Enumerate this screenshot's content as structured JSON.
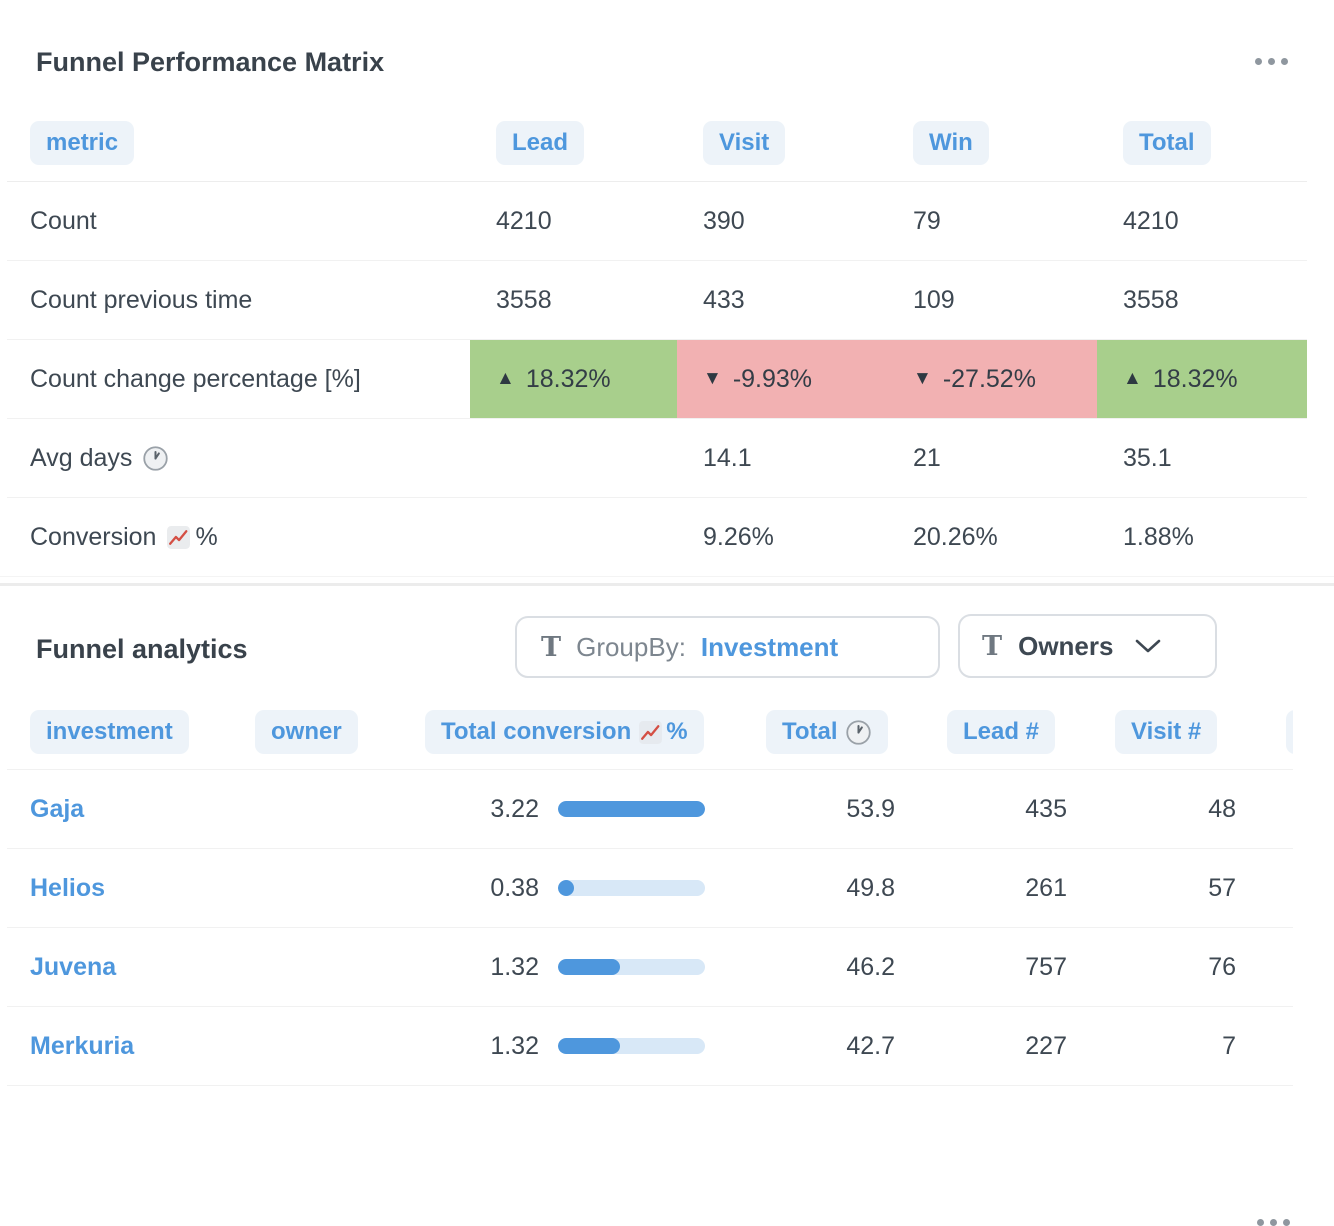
{
  "colors": {
    "accent_blue": "#4e97dd",
    "badge_background": "#edf3f9",
    "positive_cell": "#a8cf8c",
    "negative_cell": "#f2b1b2",
    "bar_fill": "#4e97dd",
    "bar_track": "#d8e8f7",
    "text_dark": "#3e4852",
    "text_gray": "#7d868f"
  },
  "icons": {
    "matrix_menu": "ellipsis-icon",
    "analytics_menu": "ellipsis-icon",
    "avg_days": "clock-icon",
    "conversion": "chart-up-icon",
    "total_header": "clock-icon",
    "total_conversion_header": "chart-up-icon",
    "groupby_field": "text-format-icon",
    "owners_field": "text-format-icon",
    "owners_chevron": "chevron-down-icon"
  },
  "matrix": {
    "title": "Funnel Performance Matrix",
    "columns": {
      "metric": "metric",
      "lead": "Lead",
      "visit": "Visit",
      "win": "Win",
      "total": "Total"
    },
    "rows": {
      "count": {
        "label": "Count",
        "values": [
          "4210",
          "390",
          "79",
          "4210"
        ]
      },
      "count_prev": {
        "label": "Count previous time",
        "values": [
          "3558",
          "433",
          "109",
          "3558"
        ]
      },
      "count_change": {
        "label": "Count change percentage [%]",
        "cells": [
          {
            "arrow": "▲",
            "value": "18.32%",
            "state": "positive"
          },
          {
            "arrow": "▼",
            "value": "-9.93%",
            "state": "negative"
          },
          {
            "arrow": "▼",
            "value": "-27.52%",
            "state": "negative"
          },
          {
            "arrow": "▲",
            "value": "18.32%",
            "state": "positive"
          }
        ]
      },
      "avg_days": {
        "label": "Avg days",
        "values": [
          "",
          "14.1",
          "21",
          "35.1"
        ]
      },
      "conversion": {
        "label": "Conversion",
        "suffix": "%",
        "values": [
          "",
          "9.26%",
          "20.26%",
          "1.88%"
        ]
      }
    }
  },
  "analytics": {
    "title": "Funnel analytics",
    "groupby": {
      "label": "GroupBy:",
      "value": "Investment"
    },
    "owners": {
      "label": "Owners"
    },
    "columns": {
      "investment": "investment",
      "owner": "owner",
      "total_conversion": "Total conversion",
      "total_conversion_suffix": "%",
      "total": "Total",
      "lead": "Lead #",
      "visit": "Visit #"
    },
    "rows": [
      {
        "investment": "Gaja",
        "owner": "",
        "conversion": "3.22",
        "bar_percent": 100,
        "total": "53.9",
        "lead": "435",
        "visit": "48"
      },
      {
        "investment": "Helios",
        "owner": "",
        "conversion": "0.38",
        "bar_percent": 11,
        "total": "49.8",
        "lead": "261",
        "visit": "57"
      },
      {
        "investment": "Juvena",
        "owner": "",
        "conversion": "1.32",
        "bar_percent": 42,
        "total": "46.2",
        "lead": "757",
        "visit": "76"
      },
      {
        "investment": "Merkuria",
        "owner": "",
        "conversion": "1.32",
        "bar_percent": 42,
        "total": "42.7",
        "lead": "227",
        "visit": "7"
      }
    ]
  }
}
